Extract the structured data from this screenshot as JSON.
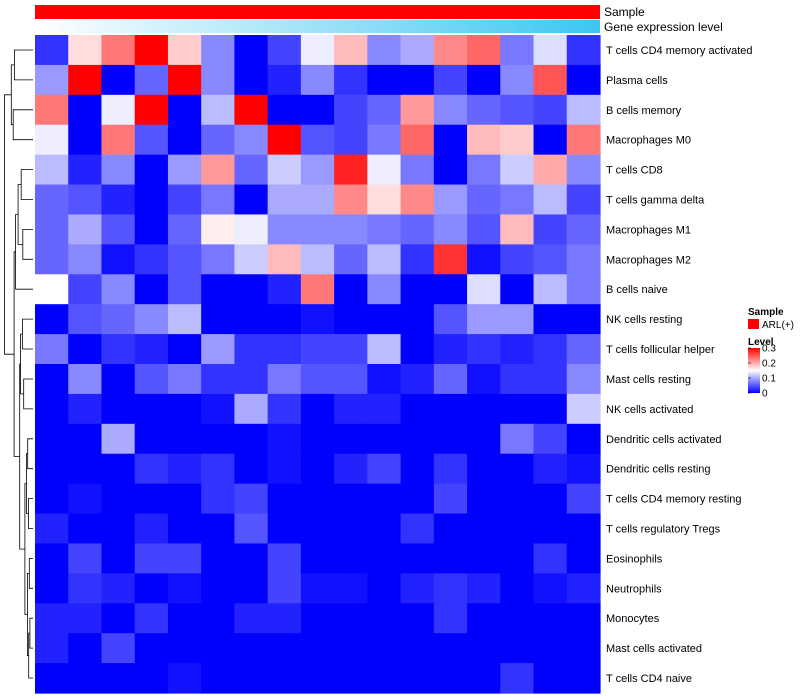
{
  "chart_data": {
    "type": "heatmap",
    "title": "",
    "annotation_rows": [
      {
        "label": "Sample",
        "color": "#ff0000"
      },
      {
        "label": "Gene expression level",
        "gradient": [
          "#ffffff",
          "#3ec6f0"
        ]
      }
    ],
    "rows": [
      "T cells CD4 memory activated",
      "Plasma cells",
      "B cells memory",
      "Macrophages M0",
      "T cells CD8",
      "T cells gamma delta",
      "Macrophages M1",
      "Macrophages M2",
      "B cells naive",
      "NK cells resting",
      "T cells follicular helper",
      "Mast cells resting",
      "NK cells activated",
      "Dendritic cells activated",
      "Dendritic cells resting",
      "T cells CD4 memory resting",
      "T cells regulatory  Tregs",
      "Eosinophils",
      "Neutrophils",
      "Monocytes",
      "Mast cells activated",
      "T cells CD4 naive"
    ],
    "values": [
      [
        0.03,
        0.17,
        0.23,
        0.31,
        0.18,
        0.08,
        0.0,
        0.04,
        0.14,
        0.19,
        0.08,
        0.1,
        0.22,
        0.24,
        0.07,
        0.13,
        0.03
      ],
      [
        0.09,
        0.31,
        0.0,
        0.06,
        0.3,
        0.08,
        0.0,
        0.02,
        0.08,
        0.03,
        0.0,
        0.0,
        0.04,
        0.0,
        0.08,
        0.25,
        0.0
      ],
      [
        0.23,
        0.0,
        0.14,
        0.31,
        0.0,
        0.11,
        0.31,
        0.0,
        0.0,
        0.04,
        0.06,
        0.21,
        0.08,
        0.06,
        0.05,
        0.04,
        0.11
      ],
      [
        0.14,
        0.0,
        0.23,
        0.05,
        0.0,
        0.06,
        0.08,
        0.31,
        0.05,
        0.04,
        0.07,
        0.24,
        0.0,
        0.19,
        0.18,
        0.0,
        0.23
      ],
      [
        0.11,
        0.02,
        0.08,
        0.0,
        0.09,
        0.21,
        0.06,
        0.12,
        0.09,
        0.28,
        0.14,
        0.07,
        0.0,
        0.07,
        0.12,
        0.2,
        0.08
      ],
      [
        0.06,
        0.05,
        0.02,
        0.0,
        0.04,
        0.07,
        0.0,
        0.1,
        0.1,
        0.22,
        0.17,
        0.22,
        0.09,
        0.06,
        0.07,
        0.11,
        0.04
      ],
      [
        0.06,
        0.1,
        0.05,
        0.0,
        0.06,
        0.16,
        0.14,
        0.08,
        0.08,
        0.08,
        0.07,
        0.06,
        0.08,
        0.05,
        0.19,
        0.04,
        0.06
      ],
      [
        0.06,
        0.08,
        0.01,
        0.03,
        0.05,
        0.07,
        0.12,
        0.19,
        0.11,
        0.06,
        0.11,
        0.03,
        0.27,
        0.01,
        0.04,
        0.05,
        0.07
      ],
      [
        0.15,
        0.04,
        0.08,
        0.0,
        0.05,
        0.0,
        0.0,
        0.02,
        0.23,
        0.0,
        0.08,
        0.0,
        0.0,
        0.13,
        0.0,
        0.11,
        0.07
      ],
      [
        0.0,
        0.05,
        0.06,
        0.08,
        0.11,
        0.0,
        0.0,
        0.0,
        0.01,
        0.0,
        0.0,
        0.0,
        0.05,
        0.09,
        0.09,
        0.0,
        0.0
      ],
      [
        0.07,
        0.0,
        0.03,
        0.02,
        0.0,
        0.09,
        0.03,
        0.03,
        0.04,
        0.04,
        0.11,
        0.0,
        0.02,
        0.03,
        0.02,
        0.03,
        0.06
      ],
      [
        0.0,
        0.08,
        0.0,
        0.05,
        0.07,
        0.03,
        0.03,
        0.07,
        0.05,
        0.05,
        0.01,
        0.02,
        0.06,
        0.01,
        0.03,
        0.03,
        0.08
      ],
      [
        0.0,
        0.02,
        0.0,
        0.0,
        0.0,
        0.01,
        0.1,
        0.03,
        0.0,
        0.02,
        0.02,
        0.0,
        0.0,
        0.0,
        0.0,
        0.0,
        0.12
      ],
      [
        0.0,
        0.0,
        0.1,
        0.0,
        0.0,
        0.0,
        0.0,
        0.01,
        0.0,
        0.0,
        0.0,
        0.0,
        0.0,
        0.0,
        0.07,
        0.04,
        0.0
      ],
      [
        0.0,
        0.0,
        0.0,
        0.03,
        0.02,
        0.03,
        0.0,
        0.01,
        0.0,
        0.02,
        0.04,
        0.0,
        0.03,
        0.0,
        0.0,
        0.02,
        0.01
      ],
      [
        0.0,
        0.01,
        0.0,
        0.0,
        0.0,
        0.03,
        0.04,
        0.0,
        0.0,
        0.0,
        0.0,
        0.0,
        0.04,
        0.0,
        0.0,
        0.0,
        0.04
      ],
      [
        0.02,
        0.0,
        0.0,
        0.02,
        0.0,
        0.0,
        0.05,
        0.0,
        0.0,
        0.0,
        0.0,
        0.03,
        0.0,
        0.0,
        0.0,
        0.0,
        0.0
      ],
      [
        0.0,
        0.04,
        0.0,
        0.04,
        0.04,
        0.0,
        0.0,
        0.04,
        0.0,
        0.0,
        0.0,
        0.0,
        0.0,
        0.0,
        0.0,
        0.03,
        0.0
      ],
      [
        0.0,
        0.03,
        0.02,
        0.0,
        0.01,
        0.0,
        0.0,
        0.04,
        0.01,
        0.01,
        0.0,
        0.02,
        0.03,
        0.02,
        0.0,
        0.01,
        0.02
      ],
      [
        0.02,
        0.02,
        0.0,
        0.03,
        0.0,
        0.0,
        0.02,
        0.02,
        0.0,
        0.0,
        0.0,
        0.0,
        0.03,
        0.0,
        0.0,
        0.0,
        0.0
      ],
      [
        0.02,
        0.0,
        0.04,
        0.0,
        0.0,
        0.0,
        0.0,
        0.0,
        0.0,
        0.0,
        0.0,
        0.0,
        0.0,
        0.0,
        0.0,
        0.0,
        0.0
      ],
      [
        0.0,
        0.0,
        0.0,
        0.0,
        0.01,
        0.0,
        0.0,
        0.0,
        0.0,
        0.0,
        0.0,
        0.0,
        0.0,
        0.0,
        0.03,
        0.0,
        0.0
      ]
    ],
    "color_scale": {
      "min": 0,
      "mid": 0.15,
      "max": 0.3,
      "colors": [
        "#0000ff",
        "#ffffff",
        "#ff0000"
      ]
    },
    "legend": {
      "position": "right",
      "sample_title": "Sample",
      "sample_entry": "ARL(+)",
      "level_title": "Level",
      "ticks": [
        {
          "value": 0.3,
          "label": "0.3"
        },
        {
          "value": 0.2,
          "label": "0.2"
        },
        {
          "value": 0.1,
          "label": "0.1"
        },
        {
          "value": 0,
          "label": "0"
        }
      ]
    },
    "row_dendrogram": true
  }
}
